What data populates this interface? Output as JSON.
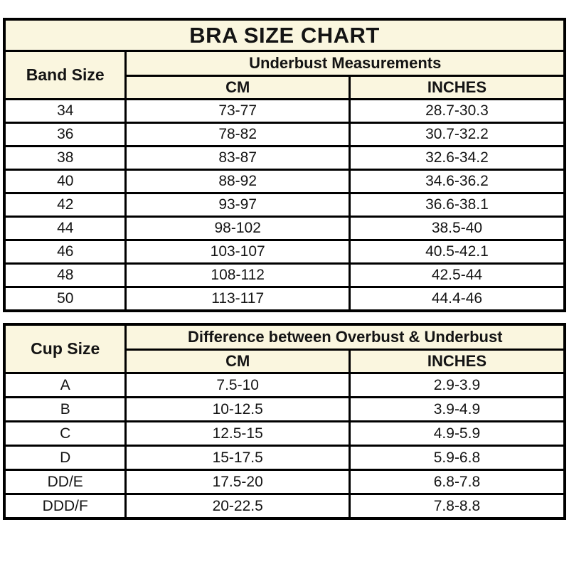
{
  "colors": {
    "header_bg": "#faf6df",
    "border": "#000000",
    "text": "#141414",
    "data_bg": "#ffffff"
  },
  "band_table": {
    "title": "BRA SIZE CHART",
    "row_header": "Band Size",
    "group_header": "Underbust Measurements",
    "col_headers": [
      "CM",
      "INCHES"
    ],
    "rows": [
      {
        "band": "34",
        "cm": "73-77",
        "inches": "28.7-30.3"
      },
      {
        "band": "36",
        "cm": "78-82",
        "inches": "30.7-32.2"
      },
      {
        "band": "38",
        "cm": "83-87",
        "inches": "32.6-34.2"
      },
      {
        "band": "40",
        "cm": "88-92",
        "inches": "34.6-36.2"
      },
      {
        "band": "42",
        "cm": "93-97",
        "inches": "36.6-38.1"
      },
      {
        "band": "44",
        "cm": "98-102",
        "inches": "38.5-40"
      },
      {
        "band": "46",
        "cm": "103-107",
        "inches": "40.5-42.1"
      },
      {
        "band": "48",
        "cm": "108-112",
        "inches": "42.5-44"
      },
      {
        "band": "50",
        "cm": "113-117",
        "inches": "44.4-46"
      }
    ]
  },
  "cup_table": {
    "row_header": "Cup Size",
    "group_header": "Difference between Overbust & Underbust",
    "col_headers": [
      "CM",
      "INCHES"
    ],
    "rows": [
      {
        "cup": "A",
        "cm": "7.5-10",
        "inches": "2.9-3.9"
      },
      {
        "cup": "B",
        "cm": "10-12.5",
        "inches": "3.9-4.9"
      },
      {
        "cup": "C",
        "cm": "12.5-15",
        "inches": "4.9-5.9"
      },
      {
        "cup": "D",
        "cm": "15-17.5",
        "inches": "5.9-6.8"
      },
      {
        "cup": "DD/E",
        "cm": "17.5-20",
        "inches": "6.8-7.8"
      },
      {
        "cup": "DDD/F",
        "cm": "20-22.5",
        "inches": "7.8-8.8"
      }
    ]
  }
}
